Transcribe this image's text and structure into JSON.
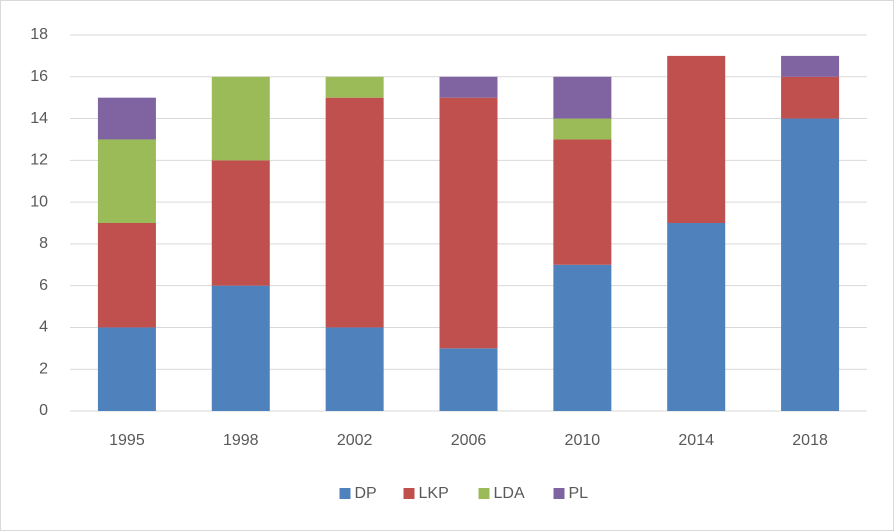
{
  "chart_data": {
    "type": "bar",
    "stacked": true,
    "categories": [
      "1995",
      "1998",
      "2002",
      "2006",
      "2010",
      "2014",
      "2018"
    ],
    "series": [
      {
        "name": "DP",
        "color": "#4f81bd",
        "values": [
          4,
          6,
          4,
          3,
          7,
          9,
          14
        ]
      },
      {
        "name": "LKP",
        "color": "#c0504d",
        "values": [
          5,
          6,
          11,
          12,
          6,
          8,
          2
        ]
      },
      {
        "name": "LDA",
        "color": "#9bbb59",
        "values": [
          4,
          4,
          1,
          0,
          1,
          0,
          0
        ]
      },
      {
        "name": "PL",
        "color": "#8064a2",
        "values": [
          2,
          0,
          0,
          1,
          2,
          0,
          1
        ]
      }
    ],
    "ylim": [
      0,
      18
    ],
    "yticks": [
      0,
      2,
      4,
      6,
      8,
      10,
      12,
      14,
      16,
      18
    ],
    "grid": true,
    "legend": "bottom"
  }
}
